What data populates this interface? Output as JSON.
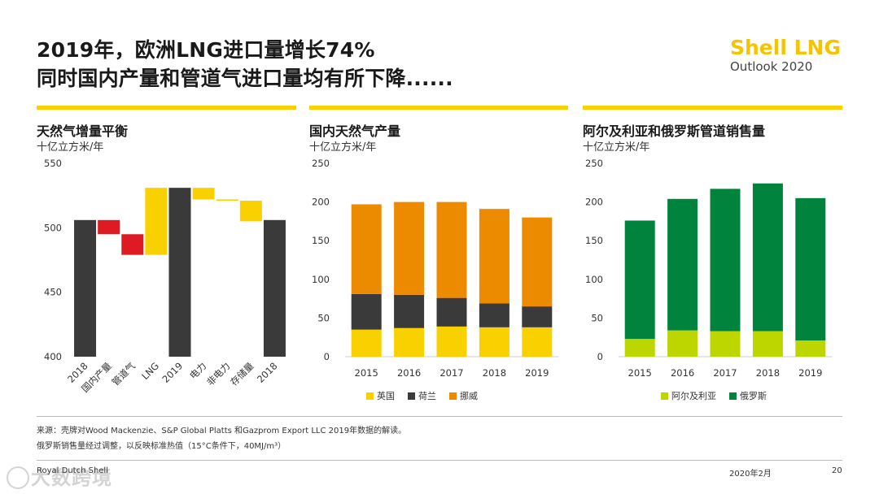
{
  "title": {
    "line1": "2019年，欧洲LNG进口量增长74%",
    "line2": "同时国内产量和管道气进口量均有所下降......"
  },
  "brand": {
    "name": "Shell LNG",
    "subtitle": "Outlook 2020"
  },
  "colors": {
    "yellow": "#f9d100",
    "dark": "#3a3a3a",
    "red": "#de1a22",
    "orange": "#ed8b00",
    "green": "#00843d",
    "lime": "#bed600",
    "gridline": "#dddddd"
  },
  "panels": [
    {
      "title": "天然气增量平衡",
      "unit": "十亿立方米/年"
    },
    {
      "title": "国内天然气产量",
      "unit": "十亿立方米/年"
    },
    {
      "title": "阿尔及利亚和俄罗斯管道销售量",
      "unit": "十亿立方米/年"
    }
  ],
  "chart_data": [
    {
      "type": "bar",
      "subtype": "waterfall",
      "title": "天然气增量平衡",
      "ylabel": "十亿立方米/年",
      "ylim": [
        400,
        550
      ],
      "yticks": [
        400,
        450,
        500,
        550
      ],
      "categories": [
        "2018",
        "国内产量",
        "管道气",
        "LNG",
        "2019",
        "电力",
        "非电力",
        "存储量",
        "2018"
      ],
      "bars": [
        {
          "label": "2018",
          "kind": "total",
          "from": 400,
          "to": 506,
          "color": "#3a3a3a"
        },
        {
          "label": "国内产量",
          "kind": "decrease",
          "from": 506,
          "to": 495,
          "color": "#de1a22"
        },
        {
          "label": "管道气",
          "kind": "decrease",
          "from": 495,
          "to": 479,
          "color": "#de1a22"
        },
        {
          "label": "LNG",
          "kind": "increase",
          "from": 479,
          "to": 531,
          "color": "#f9d100"
        },
        {
          "label": "2019",
          "kind": "total",
          "from": 400,
          "to": 531,
          "color": "#3a3a3a"
        },
        {
          "label": "电力",
          "kind": "decrease",
          "from": 531,
          "to": 522,
          "color": "#f9d100"
        },
        {
          "label": "非电力",
          "kind": "decrease",
          "from": 522,
          "to": 521,
          "color": "#f9d100"
        },
        {
          "label": "存储量",
          "kind": "decrease",
          "from": 521,
          "to": 505,
          "color": "#f9d100"
        },
        {
          "label": "2018",
          "kind": "total",
          "from": 400,
          "to": 506,
          "color": "#3a3a3a"
        }
      ]
    },
    {
      "type": "bar",
      "subtype": "stacked",
      "title": "国内天然气产量",
      "ylabel": "十亿立方米/年",
      "ylim": [
        0,
        250
      ],
      "yticks": [
        0,
        50,
        100,
        150,
        200,
        250
      ],
      "categories": [
        "2015",
        "2016",
        "2017",
        "2018",
        "2019"
      ],
      "series": [
        {
          "name": "英国",
          "color": "#f9d100",
          "values": [
            35,
            37,
            39,
            38,
            38
          ]
        },
        {
          "name": "荷兰",
          "color": "#3a3a3a",
          "values": [
            46,
            43,
            37,
            31,
            27
          ]
        },
        {
          "name": "挪威",
          "color": "#ed8b00",
          "values": [
            116,
            120,
            124,
            122,
            115
          ]
        }
      ]
    },
    {
      "type": "bar",
      "subtype": "stacked",
      "title": "阿尔及利亚和俄罗斯管道销售量",
      "ylabel": "十亿立方米/年",
      "ylim": [
        0,
        250
      ],
      "yticks": [
        0,
        50,
        100,
        150,
        200,
        250
      ],
      "categories": [
        "2015",
        "2016",
        "2017",
        "2018",
        "2019"
      ],
      "series": [
        {
          "name": "阿尔及利亚",
          "color": "#bed600",
          "values": [
            23,
            34,
            33,
            33,
            21
          ]
        },
        {
          "name": "俄罗斯",
          "color": "#00843d",
          "values": [
            153,
            170,
            184,
            191,
            184
          ]
        }
      ]
    }
  ],
  "notes": {
    "source": "来源：壳牌对Wood Mackenzie、S&P Global Platts 和Gazprom Export LLC   2019年数据的解读。",
    "note2": "俄罗斯销售量经过调整，以反映标准热值（15°C条件下，40MJ/m³）"
  },
  "footer": {
    "company": "Royal Dutch Shell",
    "date": "2020年2月",
    "page": "20"
  },
  "watermark": "大数跨境"
}
